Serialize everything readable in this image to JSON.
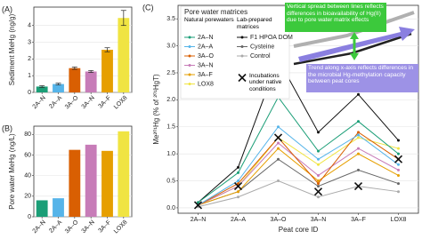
{
  "chart_data": [
    {
      "type": "bar",
      "panel_label": "(A)",
      "y_label": "Sediment MeHg (ng/g)",
      "categories": [
        "2A–N",
        "2A–A",
        "3A–O",
        "3A–N",
        "3A–F",
        "LOX8"
      ],
      "values": [
        0.35,
        0.5,
        1.45,
        1.25,
        2.55,
        4.45
      ],
      "errors": [
        0.05,
        0.05,
        0.07,
        0.06,
        0.12,
        0.45
      ],
      "colors": [
        "#1b9e77",
        "#56b4e9",
        "#d95f02",
        "#c77cb8",
        "#e69f00",
        "#f0e442"
      ],
      "ylim": [
        0,
        5.1
      ],
      "yticks": [
        0,
        1,
        2,
        3,
        4
      ],
      "grid": true
    },
    {
      "type": "bar",
      "panel_label": "(B)",
      "y_label": "Pore water MeHg (ng/L)",
      "categories": [
        "2A–N",
        "2A–A",
        "3A–O",
        "3A–N",
        "3A–F",
        "LOX8"
      ],
      "values": [
        16,
        18,
        65,
        70,
        64,
        83
      ],
      "colors": [
        "#1b9e77",
        "#56b4e9",
        "#d95f02",
        "#c77cb8",
        "#e69f00",
        "#f0e442"
      ],
      "ylim": [
        0,
        88
      ],
      "yticks": [
        0,
        20,
        40,
        60,
        80
      ],
      "grid": true
    },
    {
      "type": "line",
      "panel_label": "(C)",
      "y_label": "Me²⁰¹Hg (% of ²⁰¹HgT)",
      "x_label": "Peat core ID",
      "categories": [
        "2A–N",
        "2A–A",
        "3A–O",
        "3A–N",
        "3A–F",
        "LOX8"
      ],
      "ylim": [
        -0.1,
        3.75
      ],
      "yticks": [
        {
          "value": 0,
          "label": "0.0"
        },
        {
          "value": 0.5,
          "label": "0.5"
        },
        {
          "value": 1,
          "label": "1.0"
        },
        {
          "value": 1.5,
          "label": "1.5"
        },
        {
          "value": 2,
          "label": "2.0"
        },
        {
          "value": 2.5,
          "label": "2.5"
        },
        {
          "value": 3,
          "label": "3.0"
        },
        {
          "value": 3.5,
          "label": "3.5"
        }
      ],
      "grid": true,
      "legend_title": "Pore water matrices",
      "legend_headings": [
        "Natural porewaters",
        "Lab-prepared matrices"
      ],
      "series": [
        {
          "name": "2A–N",
          "color": "#1b9e77",
          "values": [
            0.1,
            0.65,
            2.05,
            1.05,
            1.6,
            1.0
          ]
        },
        {
          "name": "2A–A",
          "color": "#56b4e9",
          "values": [
            0.05,
            0.5,
            1.5,
            0.9,
            1.35,
            0.8
          ]
        },
        {
          "name": "3A–O",
          "color": "#d95f02",
          "values": [
            0.05,
            0.45,
            1.3,
            0.45,
            1.4,
            0.9
          ]
        },
        {
          "name": "3A–N",
          "color": "#c77cb8",
          "values": [
            0.05,
            0.4,
            1.2,
            0.6,
            1.1,
            0.7
          ]
        },
        {
          "name": "3A–F",
          "color": "#e69f00",
          "values": [
            0.05,
            0.3,
            1.1,
            0.5,
            1.0,
            0.6
          ]
        },
        {
          "name": "LOX8",
          "color": "#f0e442",
          "values": [
            0.05,
            0.4,
            1.3,
            0.8,
            1.3,
            1.1
          ]
        },
        {
          "name": "F1 HPOA DOM",
          "color": "#111111",
          "values": [
            0.1,
            0.75,
            2.75,
            1.4,
            2.1,
            1.25
          ]
        },
        {
          "name": "Cysteine",
          "color": "#666666",
          "values": [
            0.05,
            0.3,
            0.9,
            0.4,
            0.7,
            0.45
          ]
        },
        {
          "name": "Control",
          "color": "#aaaaaa",
          "values": [
            0.02,
            0.2,
            0.5,
            0.2,
            0.4,
            0.3
          ]
        },
        {
          "name": "Incubations under native conditions",
          "color": "#111111",
          "marker": "x",
          "values": [
            0.05,
            0.4,
            1.3,
            0.3,
            0.4,
            0.9
          ]
        }
      ],
      "annotations": [
        "Vertical spread between lines reflects differences in bioavailability of Hg(II) due to pore water matrix effects",
        "Trend along x-axis reflects differences in the microbial Hg-methylation capacity between peat cores"
      ]
    }
  ]
}
